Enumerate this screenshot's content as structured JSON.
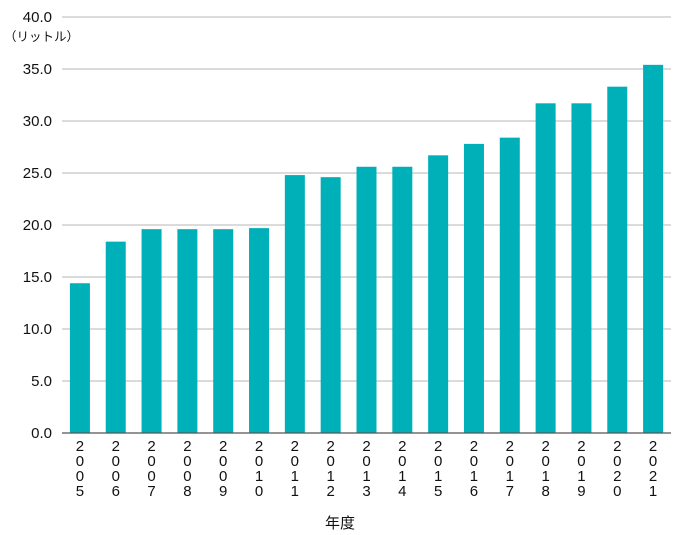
{
  "chart_data": {
    "type": "bar",
    "categories": [
      "2005",
      "2006",
      "2007",
      "2008",
      "2009",
      "2010",
      "2011",
      "2012",
      "2013",
      "2014",
      "2015",
      "2016",
      "2017",
      "2018",
      "2019",
      "2020",
      "2021"
    ],
    "values": [
      14.4,
      18.4,
      19.6,
      19.6,
      19.6,
      19.7,
      24.8,
      24.6,
      25.6,
      25.6,
      26.7,
      27.8,
      28.4,
      31.7,
      31.7,
      33.3,
      35.4
    ],
    "ylabel_unit": "（リットル）",
    "xlabel": "年度",
    "ylim": [
      0,
      40
    ],
    "yticks": [
      "0.0",
      "5.0",
      "10.0",
      "15.0",
      "20.0",
      "25.0",
      "30.0",
      "35.0",
      "40.0"
    ],
    "grid": true,
    "bar_color": "#00b0b9"
  }
}
